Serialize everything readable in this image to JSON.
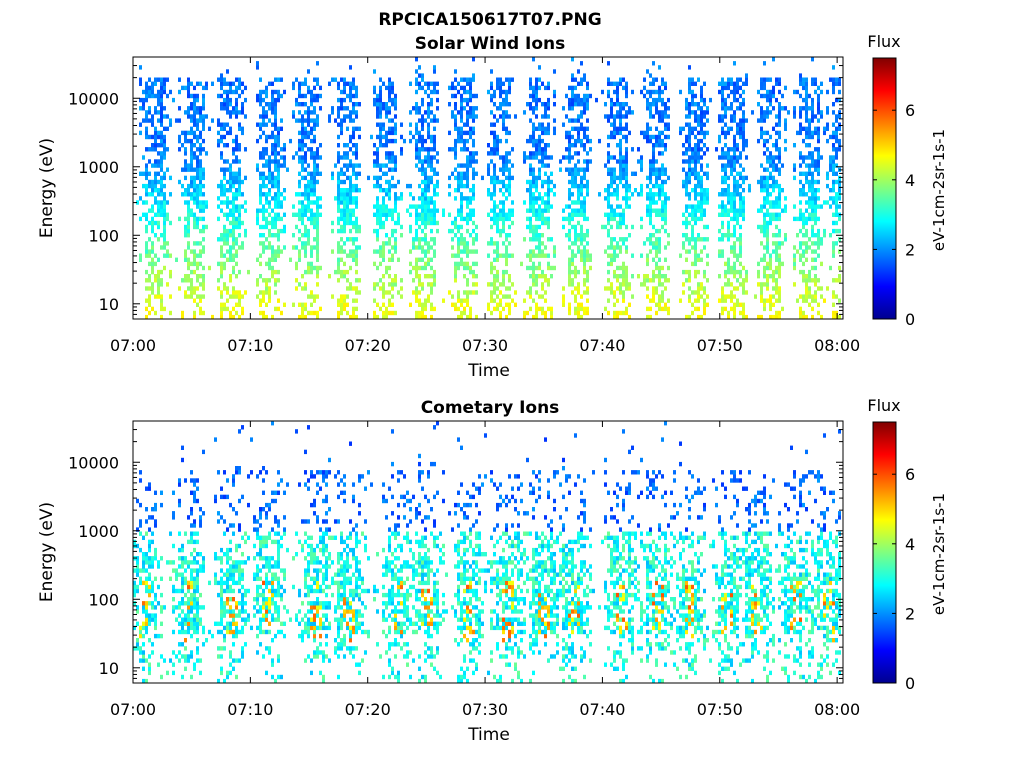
{
  "figure": {
    "title": "RPCICA150617T07.PNG"
  },
  "chart_data": [
    {
      "type": "heatmap",
      "title": "Solar Wind Ions",
      "xlabel": "Time",
      "ylabel": "Energy (eV)",
      "x_ticks": [
        "07:00",
        "07:10",
        "07:20",
        "07:30",
        "07:40",
        "07:50",
        "08:00"
      ],
      "x_range_minutes": [
        0,
        60.5
      ],
      "y_scale": "log",
      "y_ticks": [
        "10",
        "100",
        "1000",
        "10000"
      ],
      "y_range_eV": [
        6,
        40000
      ],
      "colorbar": {
        "label": "Flux",
        "unit_label": "eV-1cm-2sr-1s-1",
        "ticks": [
          "0",
          "2",
          "4",
          "6"
        ],
        "range": [
          0,
          7.5
        ],
        "colormap": "jet"
      },
      "grid": false,
      "legend": "none",
      "pattern": {
        "kind": "solar_wind",
        "burst_minutes": [
          1.8,
          5.0,
          8.3,
          11.6,
          14.8,
          18.1,
          21.5,
          24.7,
          28.0,
          31.3,
          34.5,
          37.8,
          41.2,
          44.4,
          47.7,
          51.0,
          54.3,
          57.5,
          60.3
        ],
        "note_high_energy_values": 1.5,
        "note_low_energy_values": 3.0
      }
    },
    {
      "type": "heatmap",
      "title": "Cometary Ions",
      "xlabel": "Time",
      "ylabel": "Energy (eV)",
      "x_ticks": [
        "07:00",
        "07:10",
        "07:20",
        "07:30",
        "07:40",
        "07:50",
        "08:00"
      ],
      "x_range_minutes": [
        0,
        60.5
      ],
      "y_scale": "log",
      "y_ticks": [
        "10",
        "100",
        "1000",
        "10000"
      ],
      "y_range_eV": [
        6,
        40000
      ],
      "colorbar": {
        "label": "Flux",
        "unit_label": "eV-1cm-2sr-1s-1",
        "ticks": [
          "0",
          "2",
          "4",
          "6"
        ],
        "range": [
          0,
          7.5
        ],
        "colormap": "jet"
      },
      "grid": false,
      "legend": "none",
      "pattern": {
        "kind": "cometary",
        "burst_minutes": [
          1.0,
          4.6,
          8.3,
          11.4,
          15.5,
          18.3,
          22.5,
          25.0,
          28.6,
          31.8,
          34.8,
          37.5,
          41.6,
          44.5,
          47.3,
          50.6,
          53.0,
          56.3,
          59.2
        ],
        "peak_band_eV": [
          30,
          500
        ],
        "peak_value": 6.0
      }
    }
  ]
}
